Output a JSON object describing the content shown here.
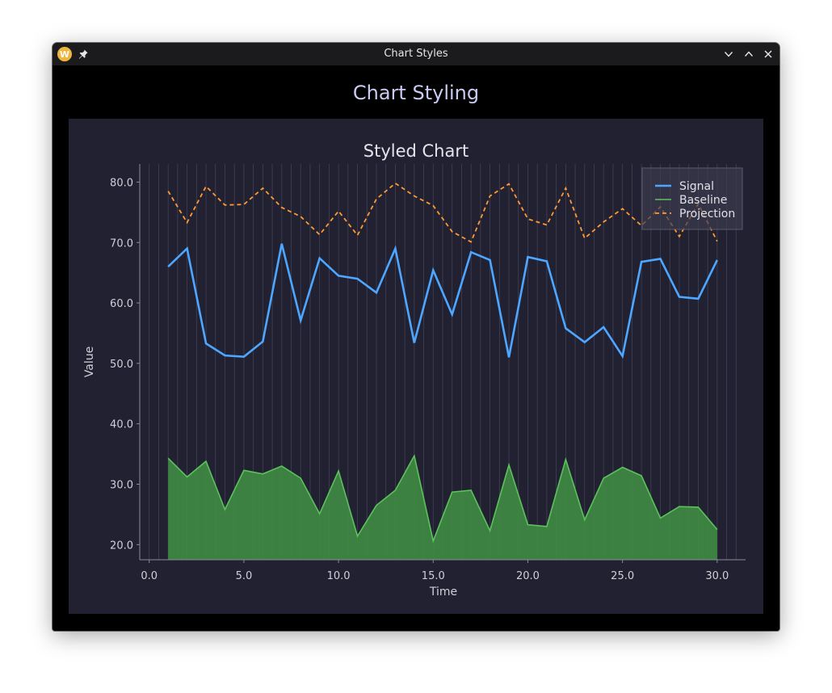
{
  "window": {
    "title": "Chart Styles"
  },
  "page": {
    "heading": "Chart Styling"
  },
  "colors": {
    "panel_bg": "#212131",
    "signal": "#4da6ff",
    "baseline": "#5cc25c",
    "baseline_fill": "#3f8a42",
    "projection": "#ff9933",
    "grid": "#4a4a60",
    "axis_text": "#d0d0d8"
  },
  "chart_data": {
    "type": "line",
    "title": "Styled Chart",
    "xlabel": "Time",
    "ylabel": "Value",
    "xlim": [
      -0.5,
      31.5
    ],
    "ylim": [
      17.5,
      83.0
    ],
    "xticks": [
      "0.0",
      "5.0",
      "10.0",
      "15.0",
      "20.0",
      "25.0",
      "30.0"
    ],
    "yticks": [
      "20.0",
      "30.0",
      "40.0",
      "50.0",
      "60.0",
      "70.0",
      "80.0"
    ],
    "grid": "vertical",
    "legend_position": "top-right",
    "x": [
      1,
      2,
      3,
      4,
      5,
      6,
      7,
      8,
      9,
      10,
      11,
      12,
      13,
      14,
      15,
      16,
      17,
      18,
      19,
      20,
      21,
      22,
      23,
      24,
      25,
      26,
      27,
      28,
      29,
      30
    ],
    "series": [
      {
        "name": "Signal",
        "style": "solid",
        "values": [
          66.0,
          69.0,
          53.3,
          51.3,
          51.1,
          53.6,
          69.8,
          57.1,
          67.4,
          64.5,
          64.0,
          61.7,
          69.0,
          53.4,
          65.4,
          58.1,
          68.4,
          67.1,
          51.0,
          67.6,
          66.9,
          55.8,
          53.5,
          56.0,
          51.2,
          66.8,
          67.3,
          61.0,
          60.7,
          67.1
        ]
      },
      {
        "name": "Baseline",
        "style": "area",
        "values": [
          34.3,
          31.2,
          33.8,
          25.8,
          32.3,
          31.7,
          33.0,
          31.0,
          25.1,
          32.2,
          21.4,
          26.5,
          29.0,
          34.7,
          20.6,
          28.7,
          29.0,
          22.3,
          33.2,
          23.3,
          23.0,
          34.1,
          24.1,
          31.0,
          32.8,
          31.4,
          24.4,
          26.3,
          26.2,
          22.5
        ]
      },
      {
        "name": "Projection",
        "style": "dashed",
        "values": [
          78.5,
          73.3,
          79.3,
          76.2,
          76.3,
          79.0,
          75.8,
          74.3,
          71.3,
          75.2,
          71.2,
          77.2,
          79.8,
          77.7,
          76.1,
          71.8,
          70.1,
          77.7,
          79.7,
          73.9,
          72.9,
          79.0,
          70.7,
          73.4,
          75.6,
          72.8,
          75.9,
          71.0,
          76.4,
          70.2
        ]
      }
    ]
  }
}
